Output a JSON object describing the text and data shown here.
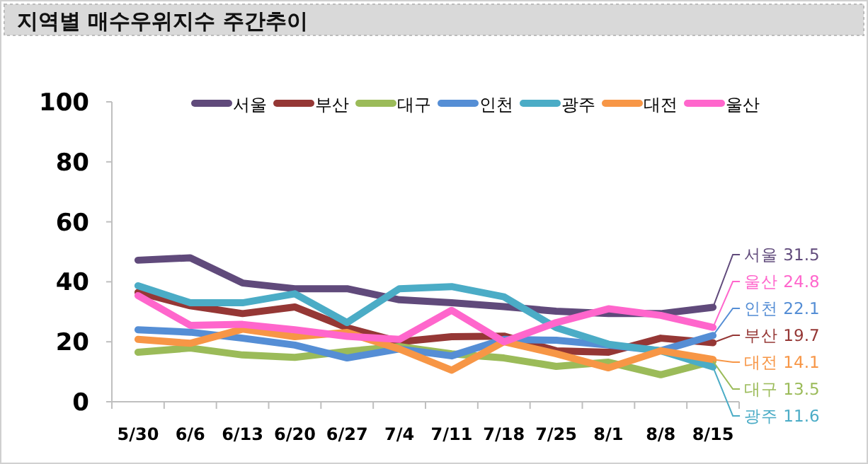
{
  "chart_data": {
    "type": "line",
    "title": "지역별 매수우위지수 주간추이",
    "categories": [
      "5/30",
      "6/6",
      "6/13",
      "6/20",
      "6/27",
      "7/4",
      "7/11",
      "7/18",
      "7/25",
      "8/1",
      "8/8",
      "8/15"
    ],
    "ylim": [
      0,
      100
    ],
    "yticks": [
      0,
      20,
      40,
      60,
      80,
      100
    ],
    "grid": false,
    "legend": "top",
    "marker": "none",
    "line_style": "solid",
    "series": [
      {
        "name": "서울",
        "color": "#604a7b",
        "values": [
          47.2,
          48,
          39.6,
          37.7,
          37.7,
          34,
          33,
          31.7,
          30.2,
          29.4,
          29.4,
          31.5
        ],
        "value_labels": [
          null,
          null,
          null,
          null,
          null,
          null,
          null,
          null,
          null,
          null,
          null,
          "31.5"
        ]
      },
      {
        "name": "부산",
        "color": "#953735",
        "values": [
          36.5,
          32,
          29.4,
          31.6,
          24.7,
          20,
          21.7,
          21.9,
          17,
          16.5,
          21.2,
          19.7
        ],
        "value_labels": [
          null,
          null,
          null,
          null,
          null,
          null,
          null,
          null,
          null,
          null,
          null,
          "19.7"
        ]
      },
      {
        "name": "대구",
        "color": "#9bbb59",
        "values": [
          16.5,
          17.9,
          15.6,
          14.8,
          16.8,
          18.4,
          16,
          14.6,
          11.8,
          13.2,
          9,
          13.5
        ],
        "value_labels": [
          null,
          null,
          null,
          null,
          null,
          null,
          null,
          null,
          null,
          null,
          null,
          "13.5"
        ]
      },
      {
        "name": "인천",
        "color": "#558ed5",
        "values": [
          24,
          23.2,
          21.2,
          18.9,
          14.6,
          17.6,
          15.3,
          20.8,
          20.5,
          18.9,
          17,
          22.1
        ],
        "value_labels": [
          null,
          null,
          null,
          null,
          null,
          null,
          null,
          null,
          null,
          null,
          null,
          "22.1"
        ]
      },
      {
        "name": "광주",
        "color": "#4bacc6",
        "values": [
          38.7,
          33,
          33,
          36,
          26.4,
          37.7,
          38.4,
          35,
          24.7,
          19.2,
          17,
          11.6
        ],
        "value_labels": [
          null,
          null,
          null,
          null,
          null,
          null,
          null,
          null,
          null,
          null,
          null,
          "11.6"
        ]
      },
      {
        "name": "대전",
        "color": "#f79646",
        "values": [
          20.8,
          19.5,
          24.2,
          21.7,
          23.1,
          17.6,
          10.5,
          20,
          16,
          11.3,
          17,
          14.1
        ],
        "value_labels": [
          null,
          null,
          null,
          null,
          null,
          null,
          null,
          null,
          null,
          null,
          null,
          "14.1"
        ]
      },
      {
        "name": "울산",
        "color": "#ff66cc",
        "values": [
          35.4,
          25.5,
          25.8,
          24,
          21.8,
          20.8,
          30.5,
          20,
          26.4,
          31,
          28.8,
          24.8
        ],
        "value_labels": [
          null,
          null,
          null,
          null,
          null,
          null,
          null,
          null,
          null,
          null,
          null,
          "24.8"
        ]
      }
    ]
  }
}
